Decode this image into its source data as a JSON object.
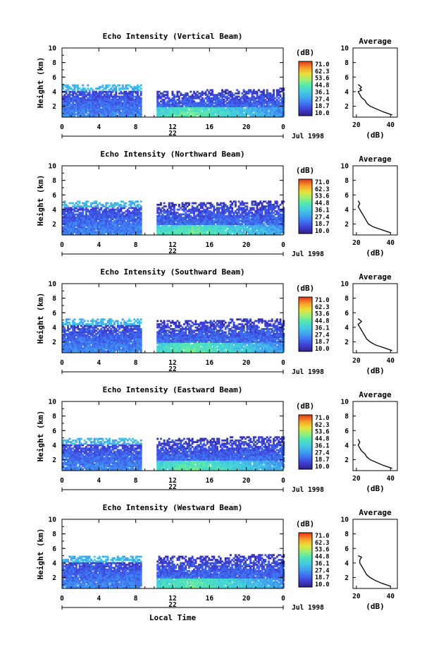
{
  "figure": {
    "x_label": "Local Time",
    "date_label": "Jul 1998",
    "day_label": "22"
  },
  "chart_data": [
    {
      "type": "heatmap",
      "title": "Echo Intensity (Vertical Beam)",
      "xlabel": "",
      "ylabel": "Height (km)",
      "x_ticks": [
        "0",
        "4",
        "8",
        "12",
        "16",
        "20",
        "0"
      ],
      "xlim": [
        0,
        24
      ],
      "ylim": [
        0.5,
        10
      ],
      "y_ticks": [
        "2",
        "4",
        "6",
        "8",
        "10"
      ],
      "data_gap_hours": [
        8.6,
        10.2
      ],
      "echo_top_km_before_gap": 5.0,
      "echo_top_km_after_gap": 4.0,
      "colorbar": {
        "unit": "(dB)",
        "ticks": [
          "71.0",
          "62.3",
          "53.6",
          "44.8",
          "36.1",
          "27.4",
          "18.7",
          "10.0"
        ],
        "range": [
          10.0,
          71.0
        ]
      },
      "profile": {
        "title": "Average",
        "xlabel": "(dB)",
        "x_ticks": [
          "20",
          "40"
        ],
        "y_ticks": [
          "2",
          "4",
          "6",
          "8",
          "10"
        ],
        "height_km": [
          0.8,
          1.2,
          1.6,
          2.0,
          2.4,
          2.8,
          3.2,
          3.6,
          4.0,
          4.2,
          4.4,
          4.6,
          4.8,
          5.0
        ],
        "db": [
          41,
          36,
          32,
          28,
          26,
          25,
          23,
          22,
          21,
          23,
          22,
          23,
          22,
          21
        ]
      }
    },
    {
      "type": "heatmap",
      "title": "Echo Intensity (Northward Beam)",
      "xlabel": "",
      "ylabel": "Height (km)",
      "x_ticks": [
        "0",
        "4",
        "8",
        "12",
        "16",
        "20",
        "0"
      ],
      "xlim": [
        0,
        24
      ],
      "ylim": [
        0.5,
        10
      ],
      "y_ticks": [
        "2",
        "4",
        "6",
        "8",
        "10"
      ],
      "data_gap_hours": [
        8.6,
        10.2
      ],
      "echo_top_km_before_gap": 5.2,
      "echo_top_km_after_gap": 4.8,
      "colorbar": {
        "unit": "(dB)",
        "ticks": [
          "71.0",
          "62.3",
          "53.6",
          "44.8",
          "36.1",
          "27.4",
          "18.7",
          "10.0"
        ],
        "range": [
          10.0,
          71.0
        ]
      },
      "profile": {
        "title": "Average",
        "xlabel": "(dB)",
        "x_ticks": [
          "20",
          "40"
        ],
        "y_ticks": [
          "2",
          "4",
          "6",
          "8",
          "10"
        ],
        "height_km": [
          0.8,
          1.2,
          1.6,
          2.0,
          2.4,
          2.8,
          3.2,
          3.6,
          4.0,
          4.4,
          4.8,
          5.2
        ],
        "db": [
          40,
          35,
          30,
          27,
          26,
          25,
          24,
          23,
          22,
          21,
          22,
          21
        ]
      }
    },
    {
      "type": "heatmap",
      "title": "Echo Intensity (Southward Beam)",
      "xlabel": "",
      "ylabel": "Height (km)",
      "x_ticks": [
        "0",
        "4",
        "8",
        "12",
        "16",
        "20",
        "0"
      ],
      "xlim": [
        0,
        24
      ],
      "ylim": [
        0.5,
        10
      ],
      "y_ticks": [
        "2",
        "4",
        "6",
        "8",
        "10"
      ],
      "data_gap_hours": [
        8.6,
        10.2
      ],
      "echo_top_km_before_gap": 5.2,
      "echo_top_km_after_gap": 4.8,
      "colorbar": {
        "unit": "(dB)",
        "ticks": [
          "71.0",
          "62.3",
          "53.6",
          "44.8",
          "36.1",
          "27.4",
          "18.7",
          "10.0"
        ],
        "range": [
          10.0,
          71.0
        ]
      },
      "profile": {
        "title": "Average",
        "xlabel": "(dB)",
        "x_ticks": [
          "20",
          "40"
        ],
        "y_ticks": [
          "2",
          "4",
          "6",
          "8",
          "10"
        ],
        "height_km": [
          0.8,
          1.2,
          1.6,
          2.0,
          2.4,
          2.8,
          3.2,
          3.6,
          4.0,
          4.4,
          4.8,
          5.2
        ],
        "db": [
          41,
          36,
          31,
          28,
          26,
          25,
          24,
          23,
          22,
          21,
          23,
          21
        ]
      }
    },
    {
      "type": "heatmap",
      "title": "Echo Intensity (Eastward Beam)",
      "xlabel": "",
      "ylabel": "Height (km)",
      "x_ticks": [
        "0",
        "4",
        "8",
        "12",
        "16",
        "20",
        "0"
      ],
      "xlim": [
        0,
        24
      ],
      "ylim": [
        0.5,
        10
      ],
      "y_ticks": [
        "2",
        "4",
        "6",
        "8",
        "10"
      ],
      "data_gap_hours": [
        8.6,
        10.2
      ],
      "echo_top_km_before_gap": 5.0,
      "echo_top_km_after_gap": 4.8,
      "colorbar": {
        "unit": "(dB)",
        "ticks": [
          "71.0",
          "62.3",
          "53.6",
          "44.8",
          "36.1",
          "27.4",
          "18.7",
          "10.0"
        ],
        "range": [
          10.0,
          71.0
        ]
      },
      "profile": {
        "title": "Average",
        "xlabel": "(dB)",
        "x_ticks": [
          "20",
          "40"
        ],
        "y_ticks": [
          "2",
          "4",
          "6",
          "8",
          "10"
        ],
        "height_km": [
          0.8,
          1.2,
          1.6,
          2.0,
          2.4,
          2.8,
          3.2,
          3.6,
          4.0,
          4.4,
          4.8
        ],
        "db": [
          41,
          36,
          32,
          28,
          26,
          25,
          23,
          22,
          21,
          22,
          21
        ]
      }
    },
    {
      "type": "heatmap",
      "title": "Echo Intensity (Westward Beam)",
      "xlabel": "",
      "ylabel": "Height (km)",
      "x_ticks": [
        "0",
        "4",
        "8",
        "12",
        "16",
        "20",
        "0"
      ],
      "xlim": [
        0,
        24
      ],
      "ylim": [
        0.5,
        10
      ],
      "y_ticks": [
        "2",
        "4",
        "6",
        "8",
        "10"
      ],
      "data_gap_hours": [
        8.6,
        10.2
      ],
      "echo_top_km_before_gap": 5.0,
      "echo_top_km_after_gap": 4.8,
      "colorbar": {
        "unit": "(dB)",
        "ticks": [
          "71.0",
          "62.3",
          "53.6",
          "44.8",
          "36.1",
          "27.4",
          "18.7",
          "10.0"
        ],
        "range": [
          10.0,
          71.0
        ]
      },
      "profile": {
        "title": "Average",
        "xlabel": "(dB)",
        "x_ticks": [
          "20",
          "40"
        ],
        "y_ticks": [
          "2",
          "4",
          "6",
          "8",
          "10"
        ],
        "height_km": [
          0.8,
          1.2,
          1.6,
          2.0,
          2.4,
          2.8,
          3.2,
          3.6,
          4.0,
          4.4,
          4.8,
          5.0
        ],
        "db": [
          40,
          35,
          31,
          28,
          26,
          25,
          24,
          23,
          22,
          22,
          23,
          21
        ]
      }
    }
  ],
  "colors": {
    "colormap": [
      "#30238f",
      "#3e3fd6",
      "#3f73f2",
      "#42a6ee",
      "#44cde0",
      "#4fe6b6",
      "#9cef75",
      "#e8e23a",
      "#f7a329",
      "#e8431c"
    ]
  }
}
